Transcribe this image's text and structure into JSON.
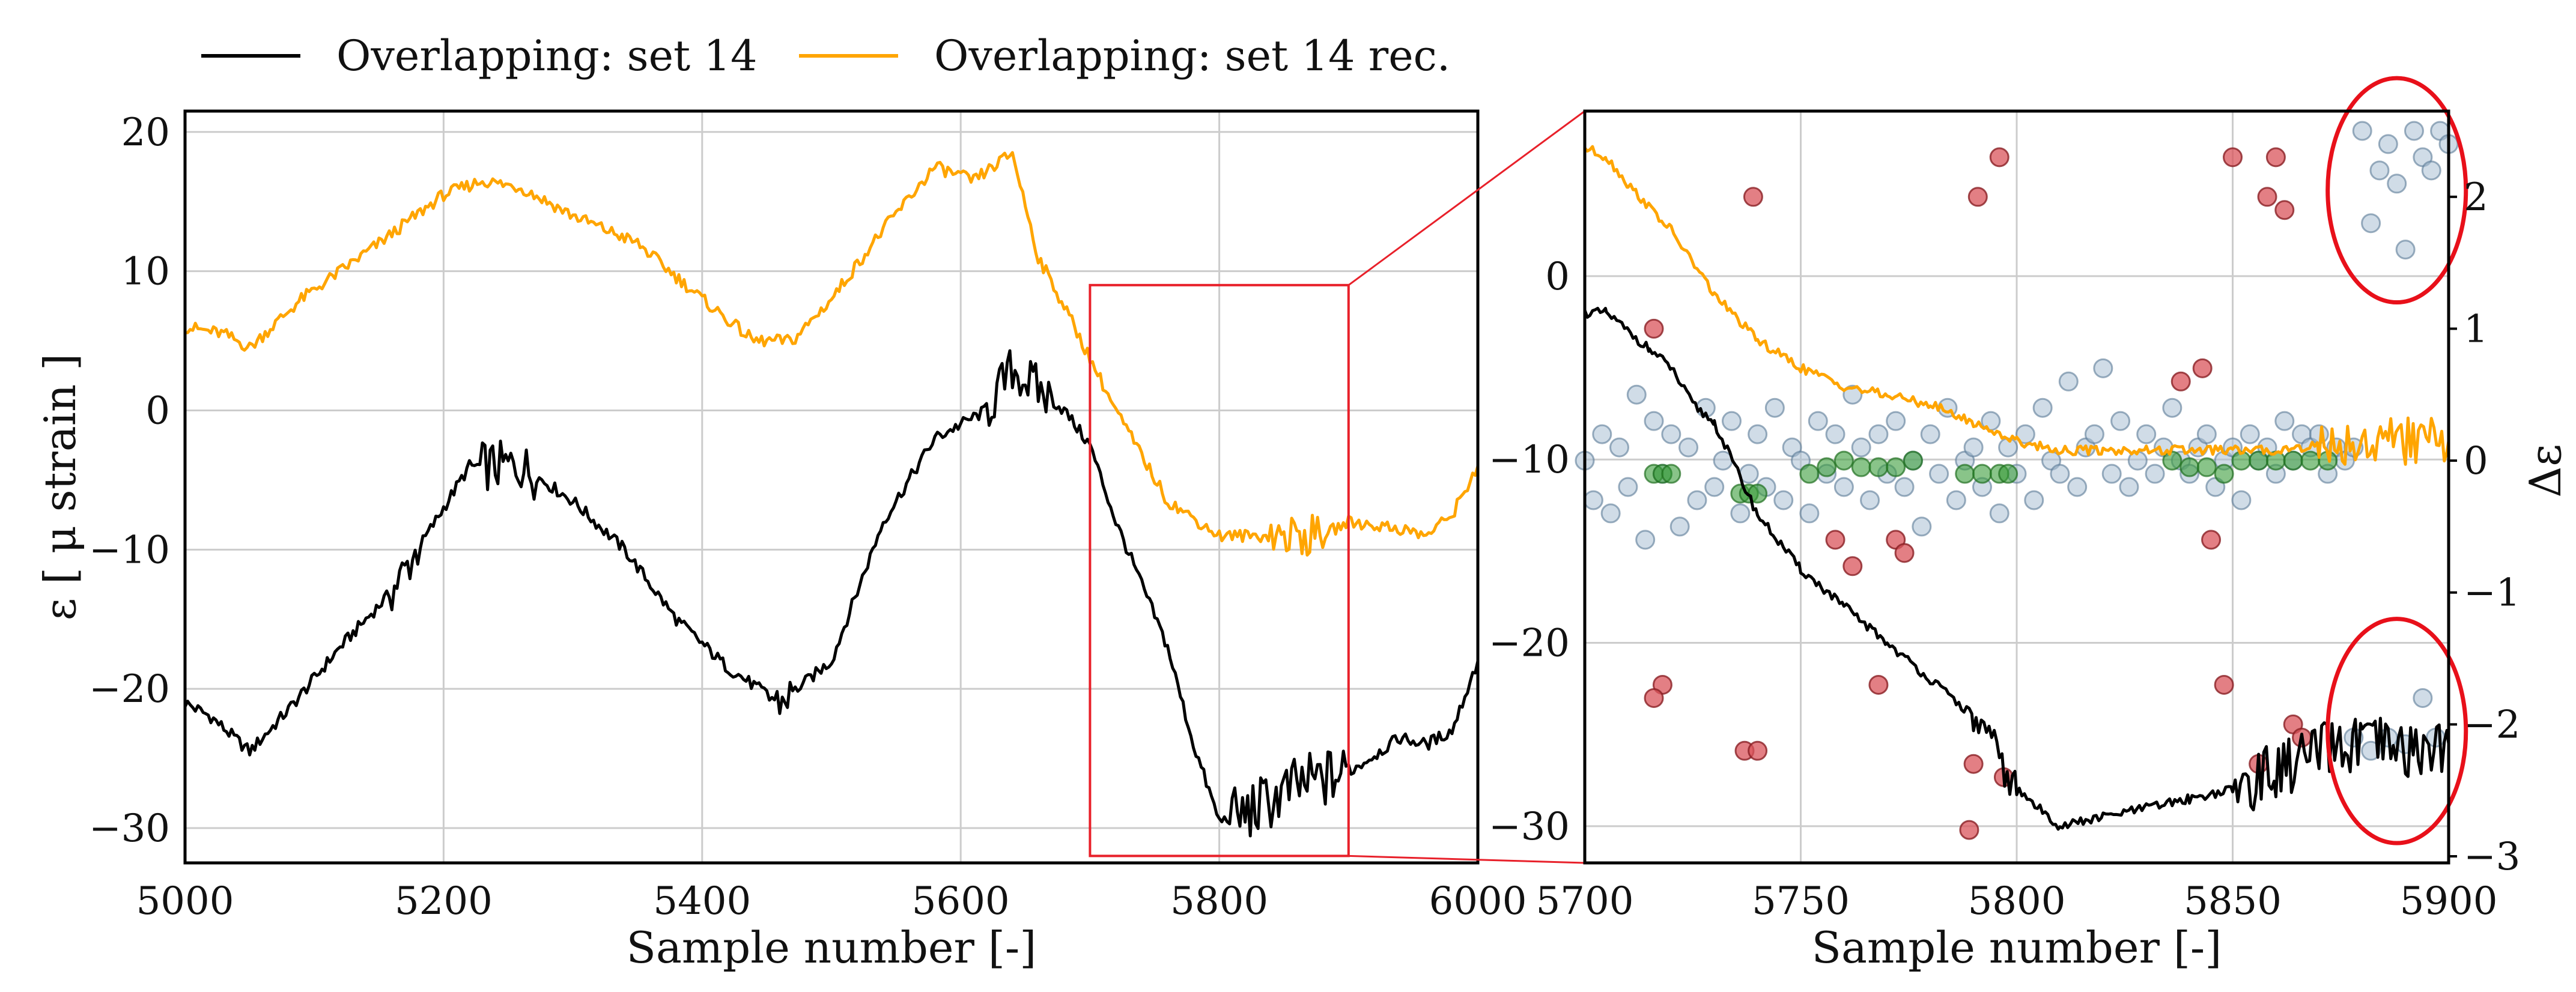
{
  "legend": {
    "items": [
      {
        "label": "Overlapping: set 14",
        "color": "#000000"
      },
      {
        "label": "Overlapping: set 14 rec.",
        "color": "#ffa500"
      }
    ],
    "placement": "top-left, above plots"
  },
  "colors": {
    "measured": "#000000",
    "reconstructed": "#ffa500",
    "zoom_box": "#e8202a",
    "residual_blue": "#a9c0d3",
    "residual_green": "#3a9d3a",
    "residual_red": "#d9545b",
    "highlight_ellipse": "#e8101a",
    "grid": "#cccccc"
  },
  "chart_data": [
    {
      "type": "line",
      "panel": "left",
      "xlabel": "Sample number [-]",
      "ylabel": "ε [ μ strain ]",
      "xlim": [
        5000,
        6000
      ],
      "ylim": [
        -32.5,
        21.5
      ],
      "xticks": [
        5000,
        5200,
        5400,
        5600,
        5800,
        6000
      ],
      "yticks": [
        -30,
        -20,
        -10,
        0,
        10,
        20
      ],
      "xtick_labels": [
        "5000",
        "5200",
        "5400",
        "5600",
        "5800",
        "6000"
      ],
      "ytick_labels": [
        "−30",
        "−20",
        "−10",
        "0",
        "10",
        "20"
      ],
      "grid": true,
      "series": [
        {
          "name": "Overlapping: set 14",
          "key": "measured",
          "x": [
            5000,
            5020,
            5050,
            5080,
            5120,
            5160,
            5200,
            5220,
            5260,
            5300,
            5340,
            5380,
            5420,
            5460,
            5500,
            5540,
            5580,
            5620,
            5640,
            5680,
            5700,
            5720,
            5760,
            5780,
            5800,
            5820,
            5860,
            5900,
            5940,
            5960,
            5980,
            6000
          ],
          "y": [
            -21,
            -22,
            -24.5,
            -21.5,
            -17,
            -13,
            -7,
            -4,
            -4,
            -6.5,
            -10,
            -15,
            -18.5,
            -21,
            -18,
            -8,
            -2,
            0,
            3,
            0,
            -2.5,
            -8,
            -17,
            -24,
            -29.5,
            -29,
            -27,
            -26,
            -23.5,
            -24,
            -23,
            -18
          ]
        },
        {
          "name": "Overlapping: set 14 rec.",
          "key": "reconstructed",
          "x": [
            5000,
            5030,
            5050,
            5090,
            5150,
            5200,
            5230,
            5260,
            5300,
            5350,
            5400,
            5440,
            5470,
            5500,
            5540,
            5580,
            5610,
            5640,
            5660,
            5680,
            5720,
            5760,
            5800,
            5840,
            5880,
            5900,
            5940,
            5960,
            5980,
            6000
          ],
          "y": [
            6,
            5.5,
            4.5,
            8,
            12,
            15.5,
            16.5,
            16,
            14,
            12,
            8,
            5,
            5,
            8,
            13,
            17.5,
            16.5,
            18.5,
            11,
            7.5,
            0,
            -6.5,
            -9,
            -9,
            -9,
            -8,
            -8.5,
            -9,
            -7.5,
            -4
          ]
        }
      ],
      "zoom_box": {
        "x": [
          5700,
          5900
        ],
        "y": [
          -32,
          9
        ]
      }
    },
    {
      "type": "line",
      "panel": "right",
      "xlabel": "Sample number [-]",
      "ylabel_right": "Δε",
      "xlim": [
        5700,
        5900
      ],
      "ylim": [
        -32,
        9
      ],
      "y2lim": [
        -3.05,
        2.65
      ],
      "xticks": [
        5700,
        5750,
        5800,
        5850,
        5900
      ],
      "yticks": [
        -30,
        -20,
        -10,
        0
      ],
      "y2ticks": [
        -3,
        -2,
        -1,
        0,
        1,
        2
      ],
      "xtick_labels": [
        "5700",
        "5750",
        "5800",
        "5850",
        "5900"
      ],
      "ytick_labels": [
        "−30",
        "−20",
        "−10",
        "0"
      ],
      "y2tick_labels": [
        "−3",
        "−2",
        "−1",
        "0",
        "1",
        "2"
      ],
      "grid": true,
      "series": [
        {
          "name": "Overlapping: set 14",
          "key": "measured",
          "x": [
            5700,
            5705,
            5710,
            5715,
            5720,
            5725,
            5730,
            5740,
            5750,
            5760,
            5770,
            5780,
            5790,
            5800,
            5810,
            5820,
            5830,
            5840,
            5850,
            5860,
            5870,
            5880,
            5890,
            5900
          ],
          "y": [
            -2,
            -2,
            -3,
            -4,
            -5,
            -7,
            -8,
            -13,
            -16,
            -18,
            -20,
            -22,
            -24,
            -28,
            -30,
            -29.5,
            -29,
            -28.5,
            -28,
            -27,
            -26,
            -25.5,
            -26,
            -25.5
          ]
        },
        {
          "name": "Overlapping: set 14 rec.",
          "key": "reconstructed",
          "x": [
            5700,
            5705,
            5710,
            5720,
            5730,
            5740,
            5750,
            5760,
            5770,
            5780,
            5790,
            5800,
            5810,
            5820,
            5830,
            5840,
            5850,
            5860,
            5870,
            5880,
            5890,
            5900
          ],
          "y": [
            7,
            6.5,
            5,
            2.5,
            -1,
            -3.5,
            -5,
            -6,
            -6.5,
            -7,
            -8,
            -9,
            -9.5,
            -9.5,
            -9.5,
            -9.5,
            -9.5,
            -9.5,
            -9.2,
            -9,
            -9,
            -9
          ]
        }
      ],
      "residuals": {
        "axis": "y2",
        "blue_points": {
          "x": [
            5700,
            5702,
            5704,
            5706,
            5708,
            5710,
            5712,
            5714,
            5716,
            5718,
            5720,
            5722,
            5724,
            5726,
            5728,
            5730,
            5732,
            5734,
            5736,
            5738,
            5740,
            5742,
            5744,
            5746,
            5748,
            5750,
            5752,
            5754,
            5756,
            5758,
            5760,
            5762,
            5764,
            5766,
            5768,
            5770,
            5772,
            5774,
            5776,
            5778,
            5780,
            5782,
            5784,
            5786,
            5788,
            5790,
            5792,
            5794,
            5796,
            5798,
            5800,
            5802,
            5804,
            5806,
            5808,
            5810,
            5812,
            5814,
            5816,
            5818,
            5820,
            5822,
            5824,
            5826,
            5828,
            5830,
            5832,
            5834,
            5836,
            5838,
            5840,
            5842,
            5844,
            5846,
            5848,
            5850,
            5852,
            5854,
            5856,
            5858,
            5860,
            5862,
            5864,
            5866,
            5868,
            5870,
            5872,
            5874,
            5876,
            5878,
            5880,
            5882,
            5884,
            5886,
            5888,
            5890,
            5892,
            5894,
            5896,
            5898,
            5900
          ],
          "y": [
            0,
            -0.3,
            0.2,
            -0.4,
            0.1,
            -0.2,
            0.5,
            -0.6,
            0.3,
            -0.1,
            0.2,
            -0.5,
            0.1,
            -0.3,
            0.4,
            -0.2,
            0,
            0.3,
            -0.4,
            -0.1,
            0.2,
            -0.2,
            0.4,
            -0.3,
            0.1,
            0,
            -0.4,
            0.3,
            -0.1,
            0.2,
            -0.2,
            0.5,
            0.1,
            -0.3,
            0.2,
            -0.1,
            0.3,
            -0.2,
            0,
            -0.5,
            0.2,
            -0.1,
            0.4,
            -0.3,
            0,
            0.1,
            -0.2,
            0.3,
            -0.4,
            0.1,
            -0.1,
            0.2,
            -0.3,
            0.4,
            0,
            -0.1,
            0.6,
            -0.2,
            0.1,
            0.2,
            0.7,
            -0.1,
            0.3,
            -0.2,
            0,
            0.2,
            -0.1,
            0.1,
            0.4,
            0,
            -0.1,
            0.1,
            0.2,
            -0.2,
            0,
            0.1,
            -0.3,
            0.2,
            0,
            0.1,
            -0.1,
            0.3,
            0,
            0.2,
            0.1,
            0.2,
            -0.1,
            0.1,
            0,
            0.1,
            2.5,
            1.8,
            2.2,
            2.4,
            2.1,
            1.6,
            2.5,
            2.3,
            2.2,
            2.5,
            2.4
          ],
          "highlight_upper": {
            "x": [
              5878,
              5882,
              5886,
              5890,
              5896,
              5898
            ],
            "y": [
              2.5,
              1.6,
              2.1,
              2.2,
              2.4,
              2.3
            ]
          },
          "highlight_lower": {
            "x": [
              5878,
              5882,
              5886,
              5890,
              5894,
              5897
            ],
            "y": [
              -2.1,
              -2.2,
              -2.1,
              -2.15,
              -1.8,
              -2.1
            ]
          }
        },
        "green_points": {
          "x": [
            5716,
            5718,
            5720,
            5736,
            5738,
            5740,
            5752,
            5756,
            5760,
            5764,
            5768,
            5772,
            5776,
            5788,
            5792,
            5796,
            5798,
            5836,
            5840,
            5844,
            5848,
            5852,
            5856,
            5860,
            5864,
            5868,
            5872
          ],
          "y": [
            -0.1,
            -0.1,
            -0.1,
            -0.25,
            -0.25,
            -0.25,
            -0.1,
            -0.05,
            0,
            -0.05,
            -0.05,
            -0.05,
            0,
            -0.1,
            -0.1,
            -0.1,
            -0.1,
            0,
            -0.05,
            -0.05,
            -0.1,
            0,
            0,
            0,
            0,
            0,
            0
          ]
        },
        "red_points": {
          "x": [
            5716,
            5718,
            5716,
            5739,
            5737,
            5740,
            5758,
            5762,
            5768,
            5772,
            5774,
            5790,
            5791,
            5796,
            5797,
            5789,
            5838,
            5843,
            5845,
            5848,
            5850,
            5856,
            5858,
            5860,
            5862,
            5864,
            5866
          ],
          "y": [
            1,
            -1.7,
            -1.8,
            2,
            -2.2,
            -2.2,
            -0.6,
            -0.8,
            -1.7,
            -0.6,
            -0.7,
            -2.3,
            2,
            2.3,
            -2.4,
            -2.8,
            0.6,
            0.7,
            -0.6,
            -1.7,
            2.3,
            -2.3,
            2,
            2.3,
            1.9,
            -2,
            -2.1
          ]
        },
        "highlight_ellipses": [
          {
            "center_x": 5888,
            "center_y2": 2.05,
            "semi_x": 16,
            "semi_y2": 0.85
          },
          {
            "center_x": 5888,
            "center_y2": -2.05,
            "semi_x": 16,
            "semi_y2": 0.85
          }
        ]
      }
    }
  ]
}
